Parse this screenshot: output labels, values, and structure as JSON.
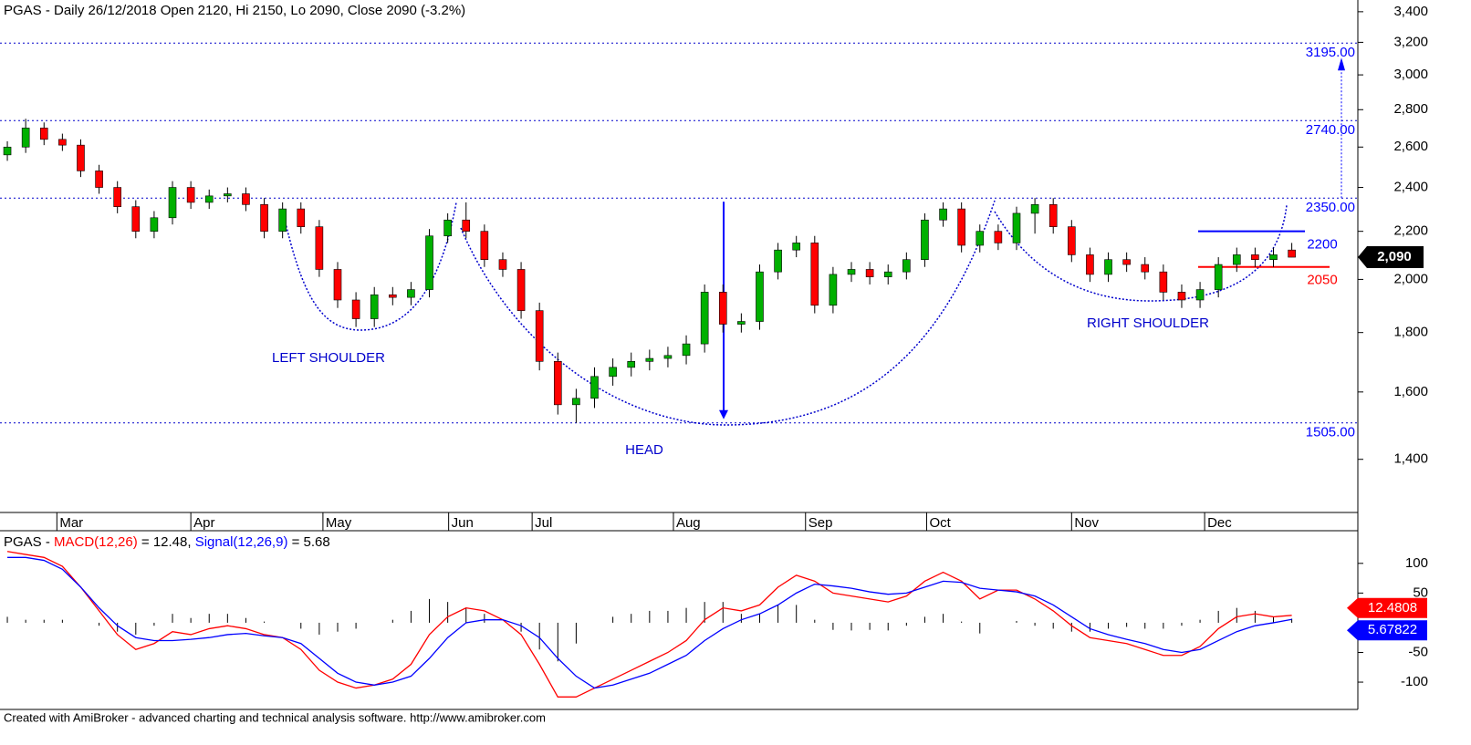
{
  "chart_data": [
    {
      "type": "candlestick",
      "title": "PGAS - Daily 26/12/2018 Open 2120, Hi 2150, Lo 2090, Close 2090 (-3.2%)",
      "open": [
        2560,
        2600,
        2700,
        2640,
        2610,
        2480,
        2400,
        2310,
        2200,
        2260,
        2400,
        2330,
        2360,
        2370,
        2320,
        2200,
        2300,
        2220,
        2040,
        1920,
        1850,
        1940,
        1930,
        1960,
        2180,
        2250,
        2200,
        2080,
        2040,
        1880,
        1700,
        1560,
        1580,
        1650,
        1680,
        1700,
        1710,
        1720,
        1760,
        1950,
        1830,
        1840,
        2030,
        2120,
        2150,
        1900,
        2020,
        2040,
        2010,
        2030,
        2080,
        2250,
        2300,
        2140,
        2200,
        2150,
        2280,
        2320,
        2220,
        2100,
        2020,
        2080,
        2060,
        2030,
        1950,
        1920,
        1960,
        2060,
        2100,
        2080,
        2120
      ],
      "high": [
        2630,
        2750,
        2730,
        2670,
        2640,
        2510,
        2430,
        2340,
        2290,
        2430,
        2430,
        2390,
        2400,
        2400,
        2350,
        2330,
        2330,
        2250,
        2070,
        1950,
        1970,
        1970,
        1990,
        2210,
        2280,
        2330,
        2230,
        2110,
        2070,
        1910,
        1730,
        1610,
        1680,
        1710,
        1730,
        1740,
        1750,
        1790,
        1980,
        1980,
        1870,
        2060,
        2150,
        2180,
        2180,
        2050,
        2070,
        2070,
        2060,
        2110,
        2280,
        2330,
        2330,
        2230,
        2230,
        2310,
        2350,
        2350,
        2250,
        2130,
        2110,
        2110,
        2090,
        2060,
        1980,
        1990,
        2090,
        2130,
        2130,
        2130,
        2150
      ],
      "low": [
        2530,
        2570,
        2610,
        2580,
        2450,
        2370,
        2280,
        2170,
        2170,
        2230,
        2300,
        2300,
        2330,
        2290,
        2170,
        2170,
        2190,
        2010,
        1890,
        1820,
        1820,
        1900,
        1900,
        1930,
        2150,
        2170,
        2050,
        2010,
        1850,
        1670,
        1530,
        1505,
        1550,
        1620,
        1650,
        1670,
        1680,
        1690,
        1730,
        1800,
        1800,
        1810,
        2000,
        2090,
        1870,
        1870,
        1990,
        1980,
        1980,
        2000,
        2050,
        2220,
        2110,
        2110,
        2120,
        2120,
        2190,
        2190,
        2070,
        1990,
        1990,
        2030,
        2000,
        1920,
        1890,
        1890,
        1930,
        2030,
        2050,
        2050,
        2090
      ],
      "close": [
        2600,
        2700,
        2640,
        2610,
        2480,
        2400,
        2310,
        2200,
        2260,
        2400,
        2330,
        2360,
        2370,
        2320,
        2200,
        2300,
        2220,
        2040,
        1920,
        1850,
        1940,
        1930,
        1960,
        2180,
        2250,
        2200,
        2080,
        2040,
        1880,
        1700,
        1560,
        1580,
        1650,
        1680,
        1700,
        1710,
        1720,
        1760,
        1950,
        1830,
        1840,
        2030,
        2120,
        2150,
        1900,
        2020,
        2040,
        2010,
        2030,
        2080,
        2250,
        2300,
        2140,
        2200,
        2150,
        2280,
        2320,
        2220,
        2100,
        2020,
        2080,
        2060,
        2030,
        1950,
        1920,
        1960,
        2060,
        2100,
        2080,
        2100,
        2090
      ],
      "last_label": "2,090",
      "up_color": "#00b000",
      "down_color": "#ff0000",
      "log": true,
      "ylim": [
        1260,
        3480
      ],
      "yticks": [
        {
          "value": 1400,
          "label": "1,400"
        },
        {
          "value": 1600,
          "label": "1,600"
        },
        {
          "value": 1800,
          "label": "1,800"
        },
        {
          "value": 2000,
          "label": "2,000"
        },
        {
          "value": 2200,
          "label": "2,200"
        },
        {
          "value": 2400,
          "label": "2,400"
        },
        {
          "value": 2600,
          "label": "2,600"
        },
        {
          "value": 2800,
          "label": "2,800"
        },
        {
          "value": 3000,
          "label": "3,000"
        },
        {
          "value": 3200,
          "label": "3,200"
        },
        {
          "value": 3400,
          "label": "3,400"
        }
      ],
      "xlim": [
        -0.4,
        73.6
      ],
      "xticks": [
        {
          "value": 2.7,
          "label": "Mar"
        },
        {
          "value": 10,
          "label": "Apr"
        },
        {
          "value": 17.2,
          "label": "May"
        },
        {
          "value": 24.05,
          "label": "Jun"
        },
        {
          "value": 28.6,
          "label": "Jul"
        },
        {
          "value": 36.3,
          "label": "Aug"
        },
        {
          "value": 43.5,
          "label": "Sep"
        },
        {
          "value": 50.1,
          "label": "Oct"
        },
        {
          "value": 58,
          "label": "Nov"
        },
        {
          "value": 65.25,
          "label": "Dec"
        }
      ],
      "levels": [
        {
          "value": 3195,
          "label": "3195.00"
        },
        {
          "value": 2740,
          "label": "2740.00"
        },
        {
          "value": 2350,
          "label": "2350.00"
        },
        {
          "value": 1505,
          "label": "1505.00"
        }
      ],
      "lines": [
        {
          "value": 2200,
          "label": "2200",
          "color": "#0000ff"
        },
        {
          "value": 2050,
          "label": "2050",
          "color": "#ff0000"
        }
      ],
      "annotations": [
        "LEFT SHOULDER",
        "HEAD",
        "RIGHT SHOULDER"
      ]
    },
    {
      "type": "macd",
      "prefix": "PGAS - ",
      "series": [
        {
          "name": "MACD(12,26)",
          "legend_value": "= 12.48,",
          "color": "#ff0000",
          "values": [
            120,
            115,
            110,
            95,
            60,
            20,
            -20,
            -45,
            -35,
            -15,
            -20,
            -10,
            -5,
            -10,
            -20,
            -25,
            -45,
            -80,
            -100,
            -110,
            -105,
            -95,
            -70,
            -20,
            10,
            25,
            20,
            5,
            -20,
            -70,
            -125,
            -125,
            -110,
            -95,
            -80,
            -65,
            -50,
            -30,
            5,
            25,
            20,
            30,
            60,
            80,
            70,
            50,
            45,
            40,
            35,
            45,
            70,
            85,
            70,
            40,
            55,
            55,
            40,
            20,
            -5,
            -25,
            -30,
            -35,
            -45,
            -55,
            -55,
            -40,
            -10,
            10,
            15,
            10,
            12.4808
          ]
        },
        {
          "name": "Signal(12,26,9)",
          "legend_value": "= 5.68",
          "color": "#0000ff",
          "values": [
            110,
            110,
            105,
            90,
            60,
            25,
            -5,
            -25,
            -30,
            -30,
            -28,
            -25,
            -20,
            -18,
            -22,
            -25,
            -35,
            -60,
            -85,
            -100,
            -105,
            -100,
            -90,
            -60,
            -25,
            0,
            5,
            5,
            -5,
            -25,
            -60,
            -90,
            -110,
            -105,
            -95,
            -85,
            -70,
            -55,
            -30,
            -10,
            5,
            15,
            30,
            50,
            65,
            62,
            58,
            52,
            48,
            50,
            60,
            70,
            68,
            58,
            55,
            52,
            45,
            30,
            10,
            -10,
            -20,
            -28,
            -35,
            -45,
            -50,
            -45,
            -30,
            -15,
            -5,
            0,
            5.67822
          ]
        }
      ],
      "histogram": {
        "color": "#000000",
        "values": [
          10,
          5,
          5,
          5,
          0,
          -5,
          -15,
          -20,
          -5,
          15,
          8,
          15,
          15,
          8,
          2,
          0,
          -10,
          -20,
          -15,
          -10,
          0,
          5,
          20,
          40,
          35,
          25,
          15,
          0,
          -15,
          -45,
          -65,
          -35,
          0,
          10,
          15,
          20,
          20,
          25,
          35,
          35,
          15,
          15,
          30,
          30,
          5,
          -12,
          -13,
          -12,
          -13,
          -5,
          10,
          15,
          2,
          -18,
          0,
          3,
          -5,
          -10,
          -15,
          -15,
          -10,
          -7,
          -10,
          -10,
          -5,
          5,
          20,
          25,
          20,
          10,
          6.80258
        ]
      },
      "ylim": [
        -146,
        155
      ],
      "yticks": [
        100,
        50,
        -50,
        -100
      ],
      "xlim": [
        -0.4,
        73.6
      ]
    },
    {
      "type": "footer",
      "text": "Created with AmiBroker - advanced charting and technical analysis software. http://www.amibroker.com"
    }
  ]
}
